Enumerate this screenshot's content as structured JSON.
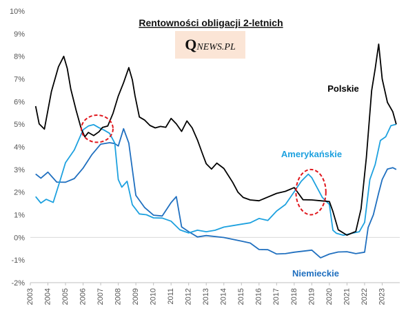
{
  "chart_data": {
    "type": "line",
    "title": "Rentowności obligacji 2-letnich",
    "logo": {
      "q": "Q",
      "rest": "NEWS.PL"
    },
    "xlabel": "",
    "ylabel": "",
    "ylim": [
      -2,
      10
    ],
    "xlim": [
      2003,
      2024
    ],
    "y_ticks": [
      "-2%",
      "-1%",
      "0%",
      "1%",
      "2%",
      "3%",
      "4%",
      "5%",
      "6%",
      "7%",
      "8%",
      "9%",
      "10%"
    ],
    "x_ticks": [
      "2003",
      "2004",
      "2005",
      "2006",
      "2007",
      "2008",
      "2009",
      "2010",
      "2011",
      "2012",
      "2013",
      "2014",
      "2015",
      "2016",
      "2017",
      "2018",
      "2019",
      "2020",
      "2021",
      "2022",
      "2023"
    ],
    "grid": false,
    "series": [
      {
        "name": "Polskie",
        "color": "#000000",
        "x": [
          2003.3,
          2003.5,
          2003.8,
          2004.2,
          2004.6,
          2004.9,
          2005.1,
          2005.3,
          2005.6,
          2005.9,
          2006.1,
          2006.3,
          2006.6,
          2006.9,
          2007.1,
          2007.4,
          2007.7,
          2008.0,
          2008.3,
          2008.6,
          2008.8,
          2008.95,
          2009.2,
          2009.5,
          2009.8,
          2010.1,
          2010.4,
          2010.7,
          2011.0,
          2011.3,
          2011.6,
          2011.9,
          2012.2,
          2012.5,
          2012.8,
          2013.0,
          2013.3,
          2013.6,
          2014.0,
          2014.5,
          2014.8,
          2015.1,
          2015.5,
          2016.0,
          2016.5,
          2017.0,
          2017.5,
          2018.0,
          2018.5,
          2019.0,
          2019.5,
          2020.0,
          2020.2,
          2020.5,
          2021.0,
          2021.5,
          2021.8,
          2022.1,
          2022.4,
          2022.6,
          2022.8,
          2023.0,
          2023.3,
          2023.6,
          2023.8
        ],
        "y": [
          5.8,
          5.0,
          4.8,
          6.5,
          7.5,
          8.0,
          7.5,
          6.5,
          5.6,
          4.8,
          4.5,
          4.6,
          4.5,
          4.7,
          4.8,
          4.9,
          5.5,
          6.3,
          6.8,
          7.5,
          7.0,
          6.2,
          5.3,
          5.2,
          5.0,
          4.8,
          4.9,
          4.9,
          5.2,
          5.0,
          4.7,
          5.2,
          4.8,
          4.3,
          3.7,
          3.2,
          3.0,
          3.3,
          3.1,
          2.4,
          2.0,
          1.8,
          1.6,
          1.6,
          1.8,
          2.0,
          2.0,
          2.2,
          1.7,
          1.6,
          1.6,
          1.6,
          1.2,
          0.3,
          0.1,
          0.3,
          1.2,
          3.5,
          6.5,
          7.5,
          8.5,
          7.0,
          6.0,
          5.5,
          5.0
        ]
      },
      {
        "name": "Amerykańskie",
        "color": "#1da1df",
        "x": [
          2003.3,
          2003.6,
          2003.9,
          2004.3,
          2004.7,
          2005.0,
          2005.5,
          2006.0,
          2006.3,
          2006.6,
          2006.9,
          2007.2,
          2007.5,
          2007.8,
          2008.0,
          2008.2,
          2008.5,
          2008.8,
          2009.2,
          2009.6,
          2010.0,
          2010.5,
          2011.0,
          2011.5,
          2012.0,
          2012.5,
          2013.0,
          2013.5,
          2014.0,
          2014.5,
          2015.0,
          2015.5,
          2016.0,
          2016.5,
          2017.0,
          2017.5,
          2018.0,
          2018.4,
          2018.8,
          2019.0,
          2019.3,
          2019.6,
          2020.0,
          2020.2,
          2020.4,
          2020.8,
          2021.3,
          2021.7,
          2022.0,
          2022.3,
          2022.6,
          2022.9,
          2023.2,
          2023.5,
          2023.8
        ],
        "y": [
          1.8,
          1.5,
          1.7,
          1.6,
          2.5,
          3.3,
          3.9,
          4.7,
          4.9,
          5.0,
          4.9,
          4.7,
          4.6,
          4.2,
          2.5,
          2.2,
          2.5,
          1.5,
          1.0,
          1.0,
          0.9,
          0.8,
          0.7,
          0.35,
          0.25,
          0.28,
          0.25,
          0.35,
          0.4,
          0.5,
          0.6,
          0.7,
          0.8,
          0.75,
          1.2,
          1.4,
          2.0,
          2.5,
          2.85,
          2.6,
          2.2,
          1.8,
          1.4,
          0.3,
          0.2,
          0.15,
          0.15,
          0.25,
          0.7,
          2.5,
          3.2,
          4.3,
          4.5,
          4.9,
          5.0
        ]
      },
      {
        "name": "Niemieckie",
        "color": "#1f6fbf",
        "x": [
          2003.3,
          2003.6,
          2004.0,
          2004.5,
          2005.0,
          2005.5,
          2006.0,
          2006.5,
          2007.0,
          2007.5,
          2007.8,
          2008.0,
          2008.3,
          2008.6,
          2009.0,
          2009.5,
          2010.0,
          2010.5,
          2011.0,
          2011.3,
          2011.6,
          2012.0,
          2012.5,
          2013.0,
          2014.0,
          2015.0,
          2015.5,
          2016.0,
          2016.5,
          2017.0,
          2017.5,
          2018.0,
          2019.0,
          2019.5,
          2020.0,
          2020.5,
          2021.0,
          2021.5,
          2022.0,
          2022.2,
          2022.5,
          2022.8,
          2023.0,
          2023.3,
          2023.6,
          2023.8
        ],
        "y": [
          2.8,
          2.6,
          2.9,
          2.5,
          2.4,
          2.6,
          3.1,
          3.6,
          4.1,
          4.2,
          4.2,
          4.0,
          4.8,
          4.2,
          1.8,
          1.3,
          1.0,
          1.0,
          1.5,
          1.8,
          0.5,
          0.2,
          0.0,
          0.1,
          0.05,
          -0.2,
          -0.25,
          -0.5,
          -0.6,
          -0.75,
          -0.7,
          -0.6,
          -0.6,
          -0.9,
          -0.7,
          -0.7,
          -0.65,
          -0.7,
          -0.6,
          0.4,
          1.0,
          2.0,
          2.5,
          3.0,
          3.1,
          3.0
        ]
      }
    ],
    "annotations": [
      {
        "type": "dashed-ellipse",
        "color": "#e0161c",
        "x": 2006.8,
        "y": 4.8,
        "rx_years": 0.9,
        "ry_pct": 0.6
      },
      {
        "type": "dashed-ellipse",
        "color": "#e0161c",
        "x": 2018.95,
        "y": 2.0,
        "rx_years": 0.85,
        "ry_pct": 1.0
      }
    ]
  }
}
